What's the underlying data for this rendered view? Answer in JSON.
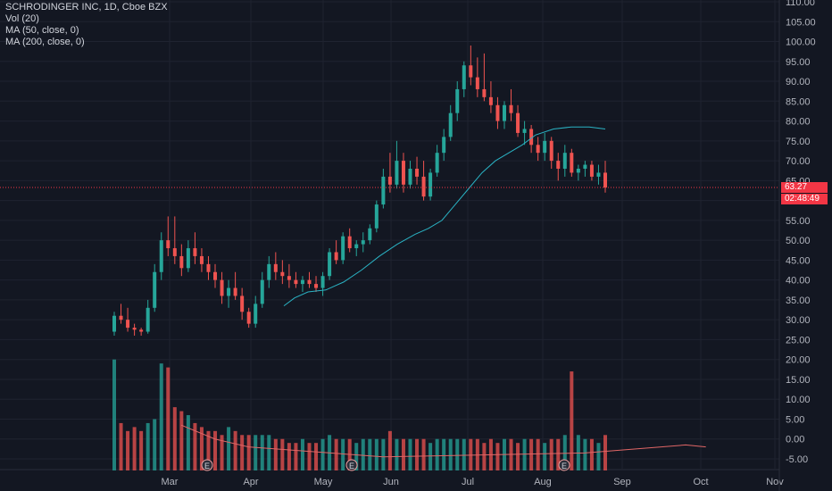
{
  "legend": {
    "title": "SCHRODINGER INC, 1D, Cboe BZX",
    "vol": "Vol (20)",
    "ma50": "MA (50, close, 0)",
    "ma200": "MA (200, close, 0)"
  },
  "last_price_label": "63.27",
  "countdown_label": "02:48:49",
  "earnings_marker_label": "E",
  "colors": {
    "background": "#131722",
    "up": "#26a69a",
    "down": "#ef5350",
    "ma50": "#2ab3c4",
    "vol_ma": "#e06666",
    "grid": "#1f2330",
    "price_line": "#f23645"
  },
  "chart_data": {
    "type": "candlestick",
    "title": "SCHRODINGER INC, 1D, Cboe BZX",
    "price_ticks": [
      "110.00",
      "105.00",
      "100.00",
      "95.00",
      "90.00",
      "85.00",
      "80.00",
      "75.00",
      "70.00",
      "65.00",
      "60.00",
      "55.00",
      "50.00",
      "45.00",
      "40.00",
      "35.00",
      "30.00",
      "25.00",
      "20.00",
      "15.00",
      "10.00",
      "5.00",
      "0.00",
      "-5.00"
    ],
    "price_axis_range": [
      -5,
      110
    ],
    "x_ticks": [
      "Mar",
      "Apr",
      "May",
      "Jun",
      "Jul",
      "Aug",
      "Sep",
      "Oct",
      "Nov"
    ],
    "last_price": 63.27,
    "earnings_markers": [
      "Mar",
      "May",
      "Aug"
    ],
    "ma50_key_points": [
      [
        0,
        38
      ],
      [
        10,
        42
      ],
      [
        20,
        48
      ],
      [
        30,
        55
      ],
      [
        40,
        62
      ],
      [
        50,
        70
      ],
      [
        60,
        76
      ],
      [
        70,
        78.5
      ]
    ],
    "volume_ma_key_points": [
      [
        0,
        3.5
      ],
      [
        5,
        0
      ],
      [
        10,
        -2
      ],
      [
        30,
        -4.5
      ],
      [
        60,
        -3.5
      ],
      [
        75,
        -1.5
      ],
      [
        78,
        -2
      ]
    ],
    "ohlc": [
      {
        "x": 0,
        "o": 27,
        "h": 32,
        "l": 26,
        "c": 31
      },
      {
        "x": 1,
        "o": 31,
        "h": 34,
        "l": 29,
        "c": 30
      },
      {
        "x": 2,
        "o": 30,
        "h": 33,
        "l": 27,
        "c": 28
      },
      {
        "x": 3,
        "o": 28,
        "h": 29,
        "l": 26,
        "c": 27.5
      },
      {
        "x": 4,
        "o": 27.5,
        "h": 28,
        "l": 26,
        "c": 27
      },
      {
        "x": 5,
        "o": 27,
        "h": 35,
        "l": 26.5,
        "c": 33
      },
      {
        "x": 6,
        "o": 33,
        "h": 44,
        "l": 32,
        "c": 42
      },
      {
        "x": 7,
        "o": 42,
        "h": 52,
        "l": 40,
        "c": 50
      },
      {
        "x": 8,
        "o": 50,
        "h": 56,
        "l": 46,
        "c": 48
      },
      {
        "x": 9,
        "o": 48,
        "h": 56,
        "l": 44,
        "c": 46
      },
      {
        "x": 10,
        "o": 46,
        "h": 49,
        "l": 41,
        "c": 43
      },
      {
        "x": 11,
        "o": 43,
        "h": 50,
        "l": 42,
        "c": 48
      },
      {
        "x": 12,
        "o": 48,
        "h": 52,
        "l": 44,
        "c": 46
      },
      {
        "x": 13,
        "o": 46,
        "h": 48,
        "l": 42,
        "c": 44
      },
      {
        "x": 14,
        "o": 44,
        "h": 46,
        "l": 40,
        "c": 42
      },
      {
        "x": 15,
        "o": 42,
        "h": 44,
        "l": 38,
        "c": 40
      },
      {
        "x": 16,
        "o": 40,
        "h": 42,
        "l": 34,
        "c": 36
      },
      {
        "x": 17,
        "o": 36,
        "h": 40,
        "l": 33,
        "c": 38
      },
      {
        "x": 18,
        "o": 38,
        "h": 42,
        "l": 35,
        "c": 36
      },
      {
        "x": 19,
        "o": 36,
        "h": 38,
        "l": 30,
        "c": 32
      },
      {
        "x": 20,
        "o": 32,
        "h": 33,
        "l": 28,
        "c": 29
      },
      {
        "x": 21,
        "o": 29,
        "h": 36,
        "l": 28,
        "c": 34
      },
      {
        "x": 22,
        "o": 34,
        "h": 42,
        "l": 33,
        "c": 40
      },
      {
        "x": 23,
        "o": 40,
        "h": 46,
        "l": 38,
        "c": 44
      },
      {
        "x": 24,
        "o": 44,
        "h": 47,
        "l": 40,
        "c": 42
      },
      {
        "x": 25,
        "o": 42,
        "h": 45,
        "l": 39,
        "c": 41
      },
      {
        "x": 26,
        "o": 41,
        "h": 44,
        "l": 38,
        "c": 40
      },
      {
        "x": 27,
        "o": 40,
        "h": 42,
        "l": 38,
        "c": 39
      },
      {
        "x": 28,
        "o": 39,
        "h": 41,
        "l": 37,
        "c": 40
      },
      {
        "x": 29,
        "o": 40,
        "h": 42,
        "l": 38,
        "c": 39
      },
      {
        "x": 30,
        "o": 39,
        "h": 41,
        "l": 37,
        "c": 38
      },
      {
        "x": 31,
        "o": 38,
        "h": 42,
        "l": 36,
        "c": 41
      },
      {
        "x": 32,
        "o": 41,
        "h": 48,
        "l": 40,
        "c": 47
      },
      {
        "x": 33,
        "o": 47,
        "h": 50,
        "l": 44,
        "c": 45
      },
      {
        "x": 34,
        "o": 45,
        "h": 52,
        "l": 44,
        "c": 51
      },
      {
        "x": 35,
        "o": 51,
        "h": 53,
        "l": 47,
        "c": 48
      },
      {
        "x": 36,
        "o": 48,
        "h": 50,
        "l": 46,
        "c": 49
      },
      {
        "x": 37,
        "o": 49,
        "h": 52,
        "l": 47,
        "c": 50
      },
      {
        "x": 38,
        "o": 50,
        "h": 54,
        "l": 49,
        "c": 53
      },
      {
        "x": 39,
        "o": 53,
        "h": 60,
        "l": 52,
        "c": 59
      },
      {
        "x": 40,
        "o": 59,
        "h": 68,
        "l": 58,
        "c": 66
      },
      {
        "x": 41,
        "o": 66,
        "h": 72,
        "l": 62,
        "c": 64
      },
      {
        "x": 42,
        "o": 64,
        "h": 75,
        "l": 63,
        "c": 70
      },
      {
        "x": 43,
        "o": 70,
        "h": 72,
        "l": 62,
        "c": 64
      },
      {
        "x": 44,
        "o": 64,
        "h": 70,
        "l": 63,
        "c": 68
      },
      {
        "x": 45,
        "o": 68,
        "h": 71,
        "l": 64,
        "c": 66
      },
      {
        "x": 46,
        "o": 66,
        "h": 70,
        "l": 60,
        "c": 61
      },
      {
        "x": 47,
        "o": 61,
        "h": 68,
        "l": 60,
        "c": 67
      },
      {
        "x": 48,
        "o": 67,
        "h": 74,
        "l": 66,
        "c": 72
      },
      {
        "x": 49,
        "o": 72,
        "h": 78,
        "l": 70,
        "c": 76
      },
      {
        "x": 50,
        "o": 76,
        "h": 84,
        "l": 75,
        "c": 82
      },
      {
        "x": 51,
        "o": 82,
        "h": 90,
        "l": 80,
        "c": 88
      },
      {
        "x": 52,
        "o": 88,
        "h": 95,
        "l": 86,
        "c": 94
      },
      {
        "x": 53,
        "o": 94,
        "h": 99,
        "l": 89,
        "c": 91
      },
      {
        "x": 54,
        "o": 91,
        "h": 96,
        "l": 86,
        "c": 88
      },
      {
        "x": 55,
        "o": 88,
        "h": 97,
        "l": 85,
        "c": 86
      },
      {
        "x": 56,
        "o": 86,
        "h": 90,
        "l": 82,
        "c": 84
      },
      {
        "x": 57,
        "o": 84,
        "h": 86,
        "l": 78,
        "c": 80
      },
      {
        "x": 58,
        "o": 80,
        "h": 85,
        "l": 78,
        "c": 84
      },
      {
        "x": 59,
        "o": 84,
        "h": 88,
        "l": 80,
        "c": 82
      },
      {
        "x": 60,
        "o": 82,
        "h": 84,
        "l": 76,
        "c": 77
      },
      {
        "x": 61,
        "o": 77,
        "h": 80,
        "l": 74,
        "c": 78
      },
      {
        "x": 62,
        "o": 78,
        "h": 79,
        "l": 72,
        "c": 74
      },
      {
        "x": 63,
        "o": 74,
        "h": 76,
        "l": 70,
        "c": 72
      },
      {
        "x": 64,
        "o": 72,
        "h": 77,
        "l": 70,
        "c": 75
      },
      {
        "x": 65,
        "o": 75,
        "h": 76,
        "l": 68,
        "c": 70
      },
      {
        "x": 66,
        "o": 70,
        "h": 72,
        "l": 65,
        "c": 68
      },
      {
        "x": 67,
        "o": 68,
        "h": 74,
        "l": 66,
        "c": 72
      },
      {
        "x": 68,
        "o": 72,
        "h": 73,
        "l": 66,
        "c": 67
      },
      {
        "x": 69,
        "o": 67,
        "h": 69,
        "l": 65,
        "c": 68
      },
      {
        "x": 70,
        "o": 68,
        "h": 70,
        "l": 66,
        "c": 69
      },
      {
        "x": 71,
        "o": 69,
        "h": 70,
        "l": 65,
        "c": 66
      },
      {
        "x": 72,
        "o": 66,
        "h": 69,
        "l": 64,
        "c": 67
      },
      {
        "x": 73,
        "o": 67,
        "h": 70,
        "l": 62,
        "c": 63.27
      }
    ],
    "volume": [
      20,
      4,
      2,
      3,
      2,
      4,
      5,
      19,
      18,
      8,
      7,
      6,
      4,
      3,
      2,
      2,
      1,
      3,
      2,
      1,
      1,
      1,
      1,
      1,
      0,
      0,
      -1,
      -1,
      0,
      -1,
      -1,
      0,
      1,
      0,
      0,
      0,
      -1,
      0,
      0,
      0,
      0,
      2,
      0,
      0,
      0,
      0,
      0,
      -1,
      0,
      0,
      0,
      0,
      0,
      0,
      0,
      -1,
      0,
      -1,
      0,
      0,
      -1,
      0,
      0,
      0,
      -1,
      0,
      0,
      1,
      17,
      1,
      0,
      0,
      -1,
      1
    ]
  }
}
